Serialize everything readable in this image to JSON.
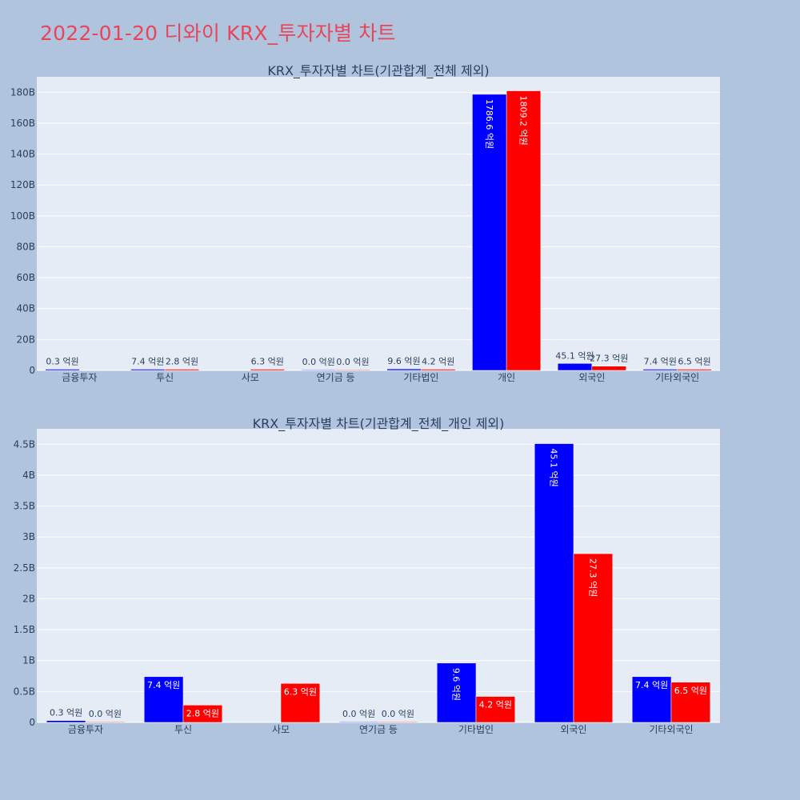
{
  "page_title": "2022-01-20 디와이 KRX_투자자별 차트",
  "colors": {
    "buy": "#0000ff",
    "sell": "#ff0000",
    "plot_bg": "#e5ecf6",
    "page_bg": "#b0c4de"
  },
  "chart_data": [
    {
      "type": "bar",
      "title": "KRX_투자자별 차트(기관합계_전체 제외)",
      "categories": [
        "금융투자",
        "투신",
        "사모",
        "연기금 등",
        "기타법인",
        "개인",
        "외국인",
        "기타외국인"
      ],
      "ylim": [
        0,
        190000000000
      ],
      "yticks": [
        0,
        20000000000,
        40000000000,
        60000000000,
        80000000000,
        100000000000,
        120000000000,
        140000000000,
        160000000000,
        180000000000
      ],
      "ytick_labels": [
        "0",
        "20B",
        "40B",
        "60B",
        "80B",
        "100B",
        "120B",
        "140B",
        "160B",
        "180B"
      ],
      "grid": true,
      "series": [
        {
          "color": "#0000ff",
          "values": [
            30000000,
            740000000,
            null,
            0,
            960000000,
            178660000000,
            4510000000,
            740000000
          ],
          "labels": [
            "0.3 억원",
            "7.4 억원",
            "",
            "0.0 억원",
            "9.6 억원",
            "1786.6 억원",
            "45.1 억원",
            "7.4 억원"
          ]
        },
        {
          "color": "#ff0000",
          "values": [
            null,
            280000000,
            630000000,
            0,
            420000000,
            180920000000,
            2730000000,
            650000000
          ],
          "labels": [
            "",
            "2.8 억원",
            "6.3 억원",
            "0.0 억원",
            "4.2 억원",
            "1809.2 억원",
            "27.3 억원",
            "6.5 억원"
          ]
        }
      ]
    },
    {
      "type": "bar",
      "title": "KRX_투자자별 차트(기관합계_전체_개인 제외)",
      "categories": [
        "금융투자",
        "투신",
        "사모",
        "연기금 등",
        "기타법인",
        "외국인",
        "기타외국인"
      ],
      "ylim": [
        0,
        4750000000
      ],
      "yticks": [
        0,
        500000000,
        1000000000,
        1500000000,
        2000000000,
        2500000000,
        3000000000,
        3500000000,
        4000000000,
        4500000000
      ],
      "ytick_labels": [
        "0",
        "0.5B",
        "1B",
        "1.5B",
        "2B",
        "2.5B",
        "3B",
        "3.5B",
        "4B",
        "4.5B"
      ],
      "grid": true,
      "series": [
        {
          "color": "#0000ff",
          "values": [
            30000000,
            740000000,
            null,
            0,
            960000000,
            4510000000,
            740000000
          ],
          "labels": [
            "0.3 억원",
            "7.4 억원",
            "",
            "0.0 억원",
            "9.6 억원",
            "45.1 억원",
            "7.4 억원"
          ]
        },
        {
          "color": "#ff0000",
          "values": [
            0,
            280000000,
            630000000,
            0,
            420000000,
            2730000000,
            650000000
          ],
          "labels": [
            "0.0 억원",
            "2.8 억원",
            "6.3 억원",
            "0.0 억원",
            "4.2 억원",
            "27.3 억원",
            "6.5 억원"
          ]
        }
      ]
    }
  ]
}
